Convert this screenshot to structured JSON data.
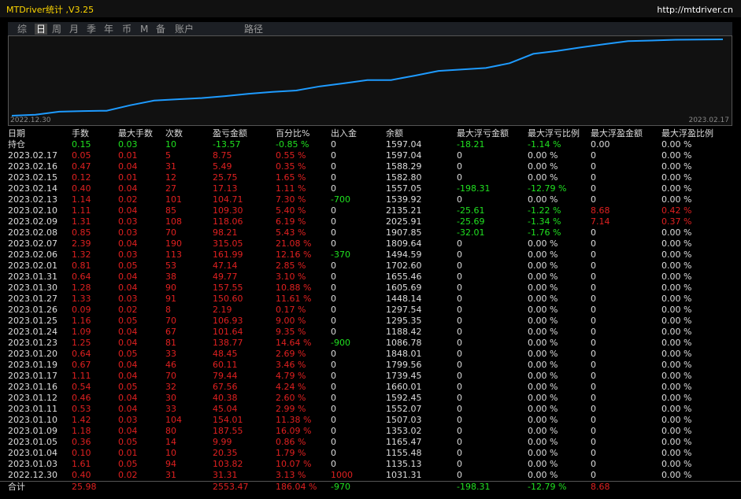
{
  "header": {
    "title": "MTDriver统计 ,V3.25",
    "url": "http://mtdriver.cn"
  },
  "tabs": [
    "综",
    "日",
    "周",
    "月",
    "季",
    "年",
    "币",
    "M",
    "备",
    "账户",
    "路径"
  ],
  "curve": {
    "start_label": "2022.12.30",
    "end_label": "2023.02.17"
  },
  "table": {
    "columns": [
      "日期",
      "手数",
      "最大手数",
      "次数",
      "盈亏金额",
      "百分比%",
      "出入金",
      "余额",
      "最大浮亏金额",
      "最大浮亏比例",
      "最大浮盈金额",
      "最大浮盈比例"
    ],
    "rows": [
      [
        "持仓",
        "0.15",
        "0.03",
        "10",
        "-13.57",
        "-0.85 %",
        "0",
        "1597.04",
        "-18.21",
        "-1.14 %",
        "0.00",
        "0.00 %"
      ],
      [
        "2023.02.17",
        "0.05",
        "0.01",
        "5",
        "8.75",
        "0.55 %",
        "0",
        "1597.04",
        "0",
        "0.00 %",
        "0",
        "0.00 %"
      ],
      [
        "2023.02.16",
        "0.47",
        "0.04",
        "31",
        "5.49",
        "0.35 %",
        "0",
        "1588.29",
        "0",
        "0.00 %",
        "0",
        "0.00 %"
      ],
      [
        "2023.02.15",
        "0.12",
        "0.01",
        "12",
        "25.75",
        "1.65 %",
        "0",
        "1582.80",
        "0",
        "0.00 %",
        "0",
        "0.00 %"
      ],
      [
        "2023.02.14",
        "0.40",
        "0.04",
        "27",
        "17.13",
        "1.11 %",
        "0",
        "1557.05",
        "-198.31",
        "-12.79 %",
        "0",
        "0.00 %"
      ],
      [
        "2023.02.13",
        "1.14",
        "0.02",
        "101",
        "104.71",
        "7.30 %",
        "-700",
        "1539.92",
        "0",
        "0.00 %",
        "0",
        "0.00 %"
      ],
      [
        "2023.02.10",
        "1.11",
        "0.04",
        "85",
        "109.30",
        "5.40 %",
        "0",
        "2135.21",
        "-25.61",
        "-1.22 %",
        "8.68",
        "0.42 %"
      ],
      [
        "2023.02.09",
        "1.31",
        "0.03",
        "108",
        "118.06",
        "6.19 %",
        "0",
        "2025.91",
        "-25.69",
        "-1.34 %",
        "7.14",
        "0.37 %"
      ],
      [
        "2023.02.08",
        "0.85",
        "0.03",
        "70",
        "98.21",
        "5.43 %",
        "0",
        "1907.85",
        "-32.01",
        "-1.76 %",
        "0",
        "0.00 %"
      ],
      [
        "2023.02.07",
        "2.39",
        "0.04",
        "190",
        "315.05",
        "21.08 %",
        "0",
        "1809.64",
        "0",
        "0.00 %",
        "0",
        "0.00 %"
      ],
      [
        "2023.02.06",
        "1.32",
        "0.03",
        "113",
        "161.99",
        "12.16 %",
        "-370",
        "1494.59",
        "0",
        "0.00 %",
        "0",
        "0.00 %"
      ],
      [
        "2023.02.01",
        "0.81",
        "0.05",
        "53",
        "47.14",
        "2.85 %",
        "0",
        "1702.60",
        "0",
        "0.00 %",
        "0",
        "0.00 %"
      ],
      [
        "2023.01.31",
        "0.64",
        "0.04",
        "38",
        "49.77",
        "3.10 %",
        "0",
        "1655.46",
        "0",
        "0.00 %",
        "0",
        "0.00 %"
      ],
      [
        "2023.01.30",
        "1.28",
        "0.04",
        "90",
        "157.55",
        "10.88 %",
        "0",
        "1605.69",
        "0",
        "0.00 %",
        "0",
        "0.00 %"
      ],
      [
        "2023.01.27",
        "1.33",
        "0.03",
        "91",
        "150.60",
        "11.61 %",
        "0",
        "1448.14",
        "0",
        "0.00 %",
        "0",
        "0.00 %"
      ],
      [
        "2023.01.26",
        "0.09",
        "0.02",
        "8",
        "2.19",
        "0.17 %",
        "0",
        "1297.54",
        "0",
        "0.00 %",
        "0",
        "0.00 %"
      ],
      [
        "2023.01.25",
        "1.16",
        "0.05",
        "70",
        "106.93",
        "9.00 %",
        "0",
        "1295.35",
        "0",
        "0.00 %",
        "0",
        "0.00 %"
      ],
      [
        "2023.01.24",
        "1.09",
        "0.04",
        "67",
        "101.64",
        "9.35 %",
        "0",
        "1188.42",
        "0",
        "0.00 %",
        "0",
        "0.00 %"
      ],
      [
        "2023.01.23",
        "1.25",
        "0.04",
        "81",
        "138.77",
        "14.64 %",
        "-900",
        "1086.78",
        "0",
        "0.00 %",
        "0",
        "0.00 %"
      ],
      [
        "2023.01.20",
        "0.64",
        "0.05",
        "33",
        "48.45",
        "2.69 %",
        "0",
        "1848.01",
        "0",
        "0.00 %",
        "0",
        "0.00 %"
      ],
      [
        "2023.01.19",
        "0.67",
        "0.04",
        "46",
        "60.11",
        "3.46 %",
        "0",
        "1799.56",
        "0",
        "0.00 %",
        "0",
        "0.00 %"
      ],
      [
        "2023.01.17",
        "1.11",
        "0.04",
        "70",
        "79.44",
        "4.79 %",
        "0",
        "1739.45",
        "0",
        "0.00 %",
        "0",
        "0.00 %"
      ],
      [
        "2023.01.16",
        "0.54",
        "0.05",
        "32",
        "67.56",
        "4.24 %",
        "0",
        "1660.01",
        "0",
        "0.00 %",
        "0",
        "0.00 %"
      ],
      [
        "2023.01.12",
        "0.46",
        "0.04",
        "30",
        "40.38",
        "2.60 %",
        "0",
        "1592.45",
        "0",
        "0.00 %",
        "0",
        "0.00 %"
      ],
      [
        "2023.01.11",
        "0.53",
        "0.04",
        "33",
        "45.04",
        "2.99 %",
        "0",
        "1552.07",
        "0",
        "0.00 %",
        "0",
        "0.00 %"
      ],
      [
        "2023.01.10",
        "1.42",
        "0.03",
        "104",
        "154.01",
        "11.38 %",
        "0",
        "1507.03",
        "0",
        "0.00 %",
        "0",
        "0.00 %"
      ],
      [
        "2023.01.09",
        "1.18",
        "0.04",
        "80",
        "187.55",
        "16.09 %",
        "0",
        "1353.02",
        "0",
        "0.00 %",
        "0",
        "0.00 %"
      ],
      [
        "2023.01.05",
        "0.36",
        "0.05",
        "14",
        "9.99",
        "0.86 %",
        "0",
        "1165.47",
        "0",
        "0.00 %",
        "0",
        "0.00 %"
      ],
      [
        "2023.01.04",
        "0.10",
        "0.01",
        "10",
        "20.35",
        "1.79 %",
        "0",
        "1155.48",
        "0",
        "0.00 %",
        "0",
        "0.00 %"
      ],
      [
        "2023.01.03",
        "1.61",
        "0.05",
        "94",
        "103.82",
        "10.07 %",
        "0",
        "1135.13",
        "0",
        "0.00 %",
        "0",
        "0.00 %"
      ],
      [
        "2022.12.30",
        "0.40",
        "0.02",
        "31",
        "31.31",
        "3.13 %",
        "1000",
        "1031.31",
        "0",
        "0.00 %",
        "0",
        "0.00 %"
      ]
    ],
    "total": [
      "合计",
      "25.98",
      null,
      null,
      "2553.47",
      "186.04 %",
      "-970",
      null,
      "-198.31",
      "-12.79 %",
      "8.68",
      null
    ]
  }
}
